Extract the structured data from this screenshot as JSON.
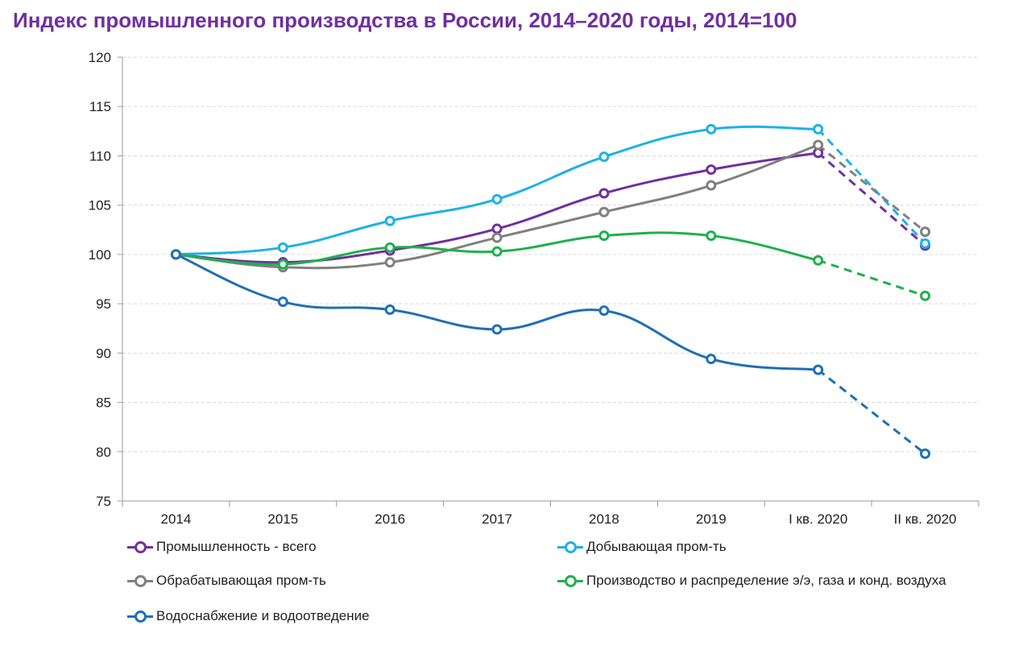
{
  "title": "Индекс промышленного производства в России, 2014–2020 годы, 2014=100",
  "chart_data": {
    "type": "line",
    "categories": [
      "2014",
      "2015",
      "2016",
      "2017",
      "2018",
      "2019",
      "I кв. 2020",
      "II кв. 2020"
    ],
    "ylim": [
      75,
      120
    ],
    "yticks": [
      75,
      80,
      85,
      90,
      95,
      100,
      105,
      110,
      115,
      120
    ],
    "grid": true,
    "legend_position": "bottom",
    "dashed_from_category": "I кв. 2020",
    "series": [
      {
        "name": "Промышленность - всего",
        "color": "#7030a0",
        "values": [
          100,
          99.2,
          100.4,
          102.6,
          106.2,
          108.6,
          110.3,
          100.9
        ]
      },
      {
        "name": "Добывающая пром-ть",
        "color": "#1fb1e6",
        "values": [
          100,
          100.7,
          103.4,
          105.6,
          109.9,
          112.7,
          112.7,
          101.1
        ]
      },
      {
        "name": "Обрабатывающая пром-ть",
        "color": "#808080",
        "values": [
          100,
          98.7,
          99.2,
          101.7,
          104.3,
          107.0,
          111.1,
          102.3
        ]
      },
      {
        "name": "Производство и распределение э/э, газа и конд. воздуха",
        "color": "#1fb04c",
        "values": [
          100,
          99.0,
          100.7,
          100.3,
          101.9,
          101.9,
          99.4,
          95.8
        ]
      },
      {
        "name": "Водоснабжение и водоотведение",
        "color": "#1f6fb4",
        "values": [
          100,
          95.2,
          94.4,
          92.4,
          94.3,
          89.4,
          88.3,
          79.8
        ]
      }
    ]
  }
}
